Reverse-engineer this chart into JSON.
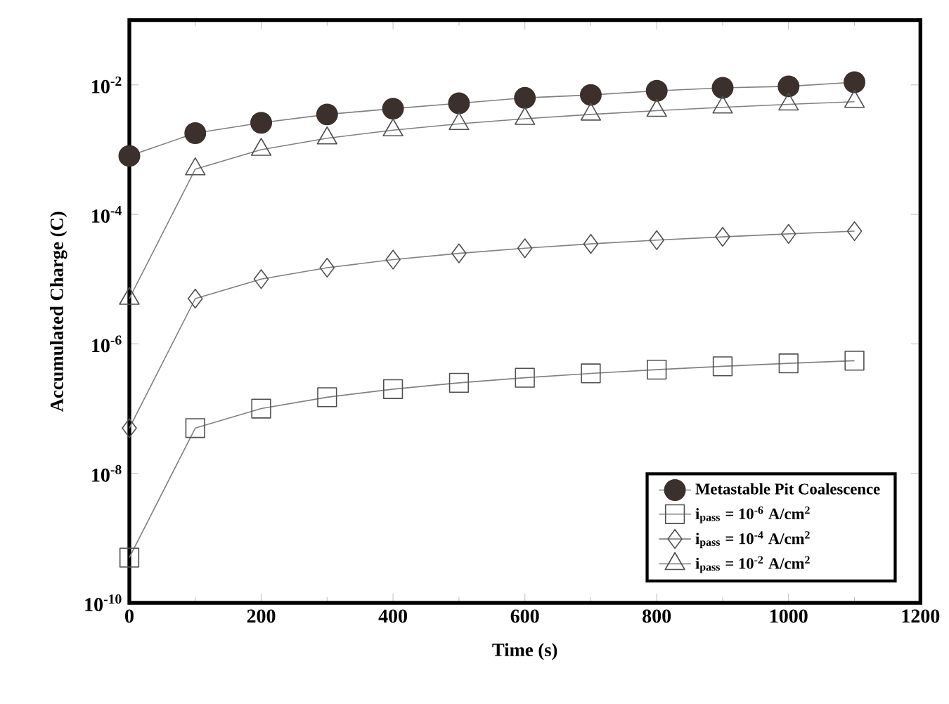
{
  "chart_data": {
    "type": "line",
    "xlabel": "Time (s)",
    "ylabel": "Accumulated Charge (C)",
    "x": [
      0,
      100,
      200,
      300,
      400,
      500,
      600,
      700,
      800,
      900,
      1000,
      1100
    ],
    "series": [
      {
        "name": "Metastable Pit Coalescence",
        "color": "#3b302c",
        "marker": "circle",
        "values": [
          0.0008,
          0.0018,
          0.0026,
          0.0035,
          0.0043,
          0.0052,
          0.0063,
          0.007,
          0.0081,
          0.009,
          0.0095,
          0.011
        ]
      },
      {
        "name": "i$_{pass}$ = 10$^{-6}$ A/cm$^{2}$",
        "color": "#505050",
        "marker": "square",
        "values": [
          5e-10,
          5e-08,
          1e-07,
          1.5e-07,
          2e-07,
          2.5e-07,
          3e-07,
          3.5e-07,
          4e-07,
          4.5e-07,
          5e-07,
          5.5e-07
        ]
      },
      {
        "name": "i$_{pass}$ = 10$^{-4}$ A/cm$^{2}$",
        "color": "#505050",
        "marker": "diamond",
        "values": [
          5e-08,
          5e-06,
          1e-05,
          1.5e-05,
          2e-05,
          2.5e-05,
          3e-05,
          3.5e-05,
          4e-05,
          4.5e-05,
          5e-05,
          5.5e-05
        ]
      },
      {
        "name": "i$_{pass}$ = 10$^{-2}$ A/cm$^{2}$",
        "color": "#505050",
        "marker": "triangle",
        "values": [
          5e-06,
          0.0005,
          0.001,
          0.0015,
          0.002,
          0.0025,
          0.003,
          0.0035,
          0.004,
          0.0045,
          0.005,
          0.0055
        ]
      }
    ],
    "log": "y",
    "xlim": [
      0,
      1200
    ],
    "ylim": [
      1e-10,
      0.1
    ],
    "xticks": [
      0,
      200,
      400,
      600,
      800,
      1000,
      1200
    ],
    "yticks": [
      {
        "value": 1e-10,
        "label": "10$^{-10}$"
      },
      {
        "value": 1e-08,
        "label": "10$^{-8}$"
      },
      {
        "value": 1e-06,
        "label": "10$^{-6}$"
      },
      {
        "value": 0.0001,
        "label": "10$^{-4}$"
      },
      {
        "value": 0.01,
        "label": "10$^{-2}$"
      }
    ],
    "grid": false,
    "legend": "bottom right",
    "line_style": "solid"
  }
}
